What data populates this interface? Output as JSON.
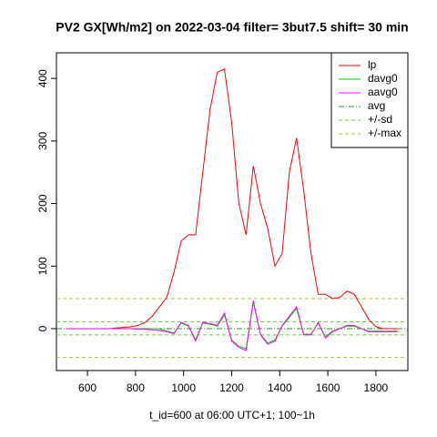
{
  "chart_data": {
    "type": "line",
    "title": "PV2 GX[Wh/m2] on 2022-03-04 filter= 3but7.5 shift= 30 min",
    "x_label": "t_id=600 at 06:00 UTC+1; 100~1h",
    "x": [
      510,
      540,
      570,
      600,
      630,
      660,
      690,
      720,
      750,
      780,
      810,
      840,
      870,
      900,
      930,
      960,
      990,
      1020,
      1050,
      1080,
      1110,
      1140,
      1170,
      1200,
      1230,
      1260,
      1290,
      1320,
      1350,
      1380,
      1410,
      1440,
      1470,
      1500,
      1530,
      1560,
      1590,
      1620,
      1650,
      1680,
      1710,
      1740,
      1770,
      1800,
      1830,
      1860,
      1890
    ],
    "series": [
      {
        "name": "lp",
        "color": "#ff0000",
        "values": [
          0,
          0,
          0,
          0,
          0,
          0,
          0,
          1,
          2,
          3,
          5,
          10,
          20,
          35,
          50,
          90,
          140,
          150,
          150,
          250,
          350,
          410,
          415,
          330,
          200,
          150,
          260,
          200,
          160,
          100,
          120,
          250,
          305,
          220,
          120,
          55,
          55,
          48,
          50,
          60,
          55,
          35,
          15,
          3,
          0,
          0,
          0
        ]
      },
      {
        "name": "davg0",
        "color": "#00cd00",
        "values": [
          0,
          0,
          0,
          0,
          0,
          0,
          0,
          0,
          0,
          0,
          0,
          0,
          0,
          0,
          -4,
          -7,
          9,
          4,
          -18,
          9,
          7,
          4,
          22,
          -18,
          -28,
          -32,
          42,
          -9,
          -23,
          -18,
          4,
          18,
          32,
          -9,
          -9,
          9,
          -13,
          -4,
          0,
          4,
          4,
          0,
          -4,
          -4,
          -4,
          -4,
          -4
        ]
      },
      {
        "name": "aavg0",
        "color": "#ff00ff",
        "values": [
          0,
          0,
          0,
          0,
          0,
          0,
          0,
          0,
          0,
          0,
          -1,
          -1,
          -2,
          -3,
          -5,
          -8,
          10,
          5,
          -20,
          10,
          8,
          5,
          25,
          -20,
          -30,
          -35,
          45,
          -10,
          -25,
          -20,
          5,
          20,
          35,
          -10,
          -10,
          10,
          -15,
          -5,
          0,
          5,
          5,
          0,
          -5,
          -5,
          -5,
          -5,
          -5
        ]
      }
    ],
    "lines": [
      {
        "name": "avg",
        "color": "#2e8b2e",
        "dash": "6 2 1 2",
        "values": [
          0
        ]
      },
      {
        "name": "+/-sd",
        "color": "#66cc33",
        "dash": "4 3",
        "values": [
          11,
          -10
        ]
      },
      {
        "name": "+/-max",
        "color": "#99cc33",
        "dash": "4 3",
        "values": [
          48,
          -46
        ]
      }
    ],
    "xlim": [
      471,
      1933
    ],
    "ylim": [
      -67,
      441
    ],
    "xticks": [
      600,
      800,
      1000,
      1200,
      1400,
      1600,
      1800
    ],
    "yticks": [
      0,
      100,
      200,
      300,
      400
    ],
    "legend": "top-right"
  }
}
